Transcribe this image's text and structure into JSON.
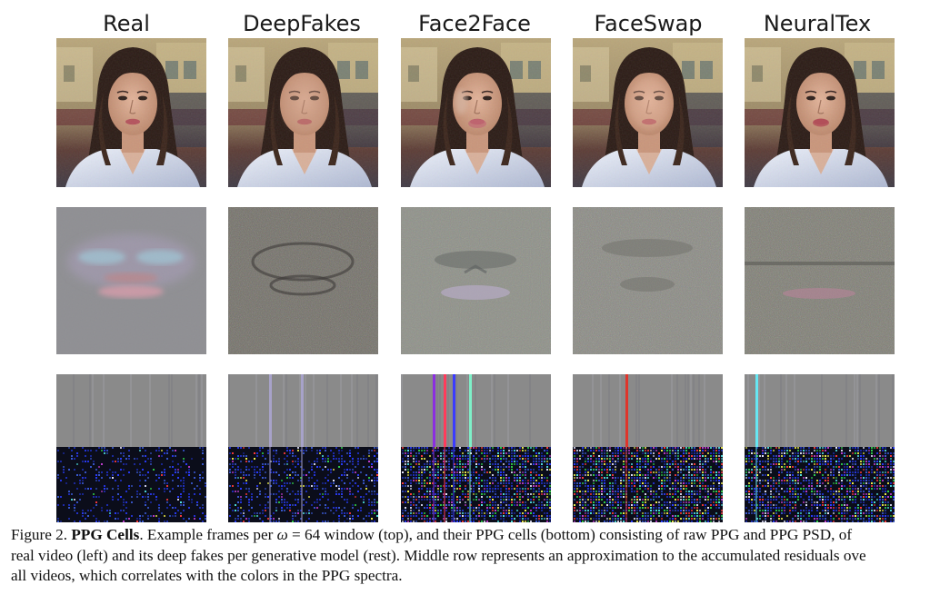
{
  "figure": {
    "columns": [
      {
        "title": "Real"
      },
      {
        "title": "DeepFakes"
      },
      {
        "title": "Face2Face"
      },
      {
        "title": "FaceSwap"
      },
      {
        "title": "NeuralTex"
      }
    ]
  },
  "caption": {
    "label": "Figure 2.",
    "bold_title": "PPG Cells",
    "line1_a": ". Example frames per ",
    "omega": "ω",
    "line1_b": " = 64 window (top), and their PPG cells (bottom) consisting of raw PPG and PPG PSD, of",
    "line2": "real video (left) and its deep fakes per generative model (rest). Middle row represents an approximation to the accumulated residuals ove",
    "line3": "all videos, which correlates with the colors in the PPG spectra."
  },
  "colors": {
    "frame_bg": "#c9b98f",
    "residual_gray": "#8c8c8c",
    "ppg_gray": "#8a8a8a",
    "ppg_dark": "#0b0d1a"
  }
}
